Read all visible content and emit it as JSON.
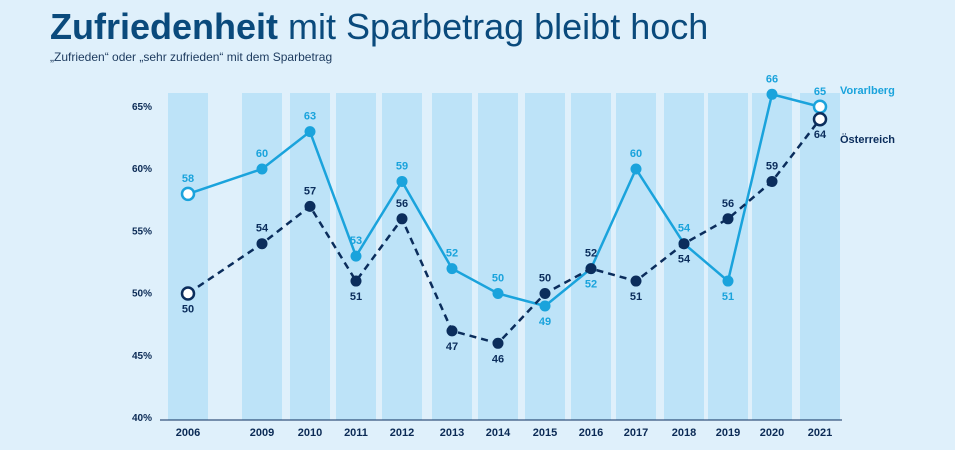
{
  "header": {
    "title_bold": "Zufriedenheit",
    "title_rest": " mit Sparbetrag bleibt hoch",
    "subtitle": "„Zufrieden“ oder „sehr zufrieden“ mit dem Sparbetrag"
  },
  "chart_data": {
    "type": "line",
    "title": "Zufriedenheit mit Sparbetrag bleibt hoch",
    "subtitle": "„Zufrieden“ oder „sehr zufrieden“ mit dem Sparbetrag",
    "categories": [
      "2006",
      "2009",
      "2010",
      "2011",
      "2012",
      "2013",
      "2014",
      "2015",
      "2016",
      "2017",
      "2018",
      "2019",
      "2020",
      "2021"
    ],
    "y_ticks": [
      40,
      45,
      50,
      55,
      60,
      65
    ],
    "y_tick_labels": [
      "40%",
      "45%",
      "50%",
      "55%",
      "60%",
      "65%"
    ],
    "ylim": [
      40,
      66
    ],
    "series": [
      {
        "name": "Vorarlberg",
        "color": "#1aa3dc",
        "style": "solid",
        "values": [
          58,
          60,
          63,
          53,
          59,
          52,
          50,
          49,
          52,
          60,
          54,
          51,
          66,
          65
        ],
        "labels": [
          "58",
          "60",
          "63",
          "53",
          "59",
          "52",
          "50",
          "49",
          "52",
          "60",
          "54",
          "51",
          "66",
          "65"
        ]
      },
      {
        "name": "Österreich",
        "color": "#0b2d5c",
        "style": "dashed",
        "values": [
          50,
          54,
          57,
          51,
          56,
          47,
          46,
          50,
          52,
          51,
          54,
          56,
          59,
          64
        ],
        "labels": [
          "50",
          "54",
          "57",
          "51",
          "56",
          "47",
          "46",
          "50",
          "52",
          "51",
          "54",
          "56",
          "59",
          "64"
        ]
      }
    ]
  }
}
